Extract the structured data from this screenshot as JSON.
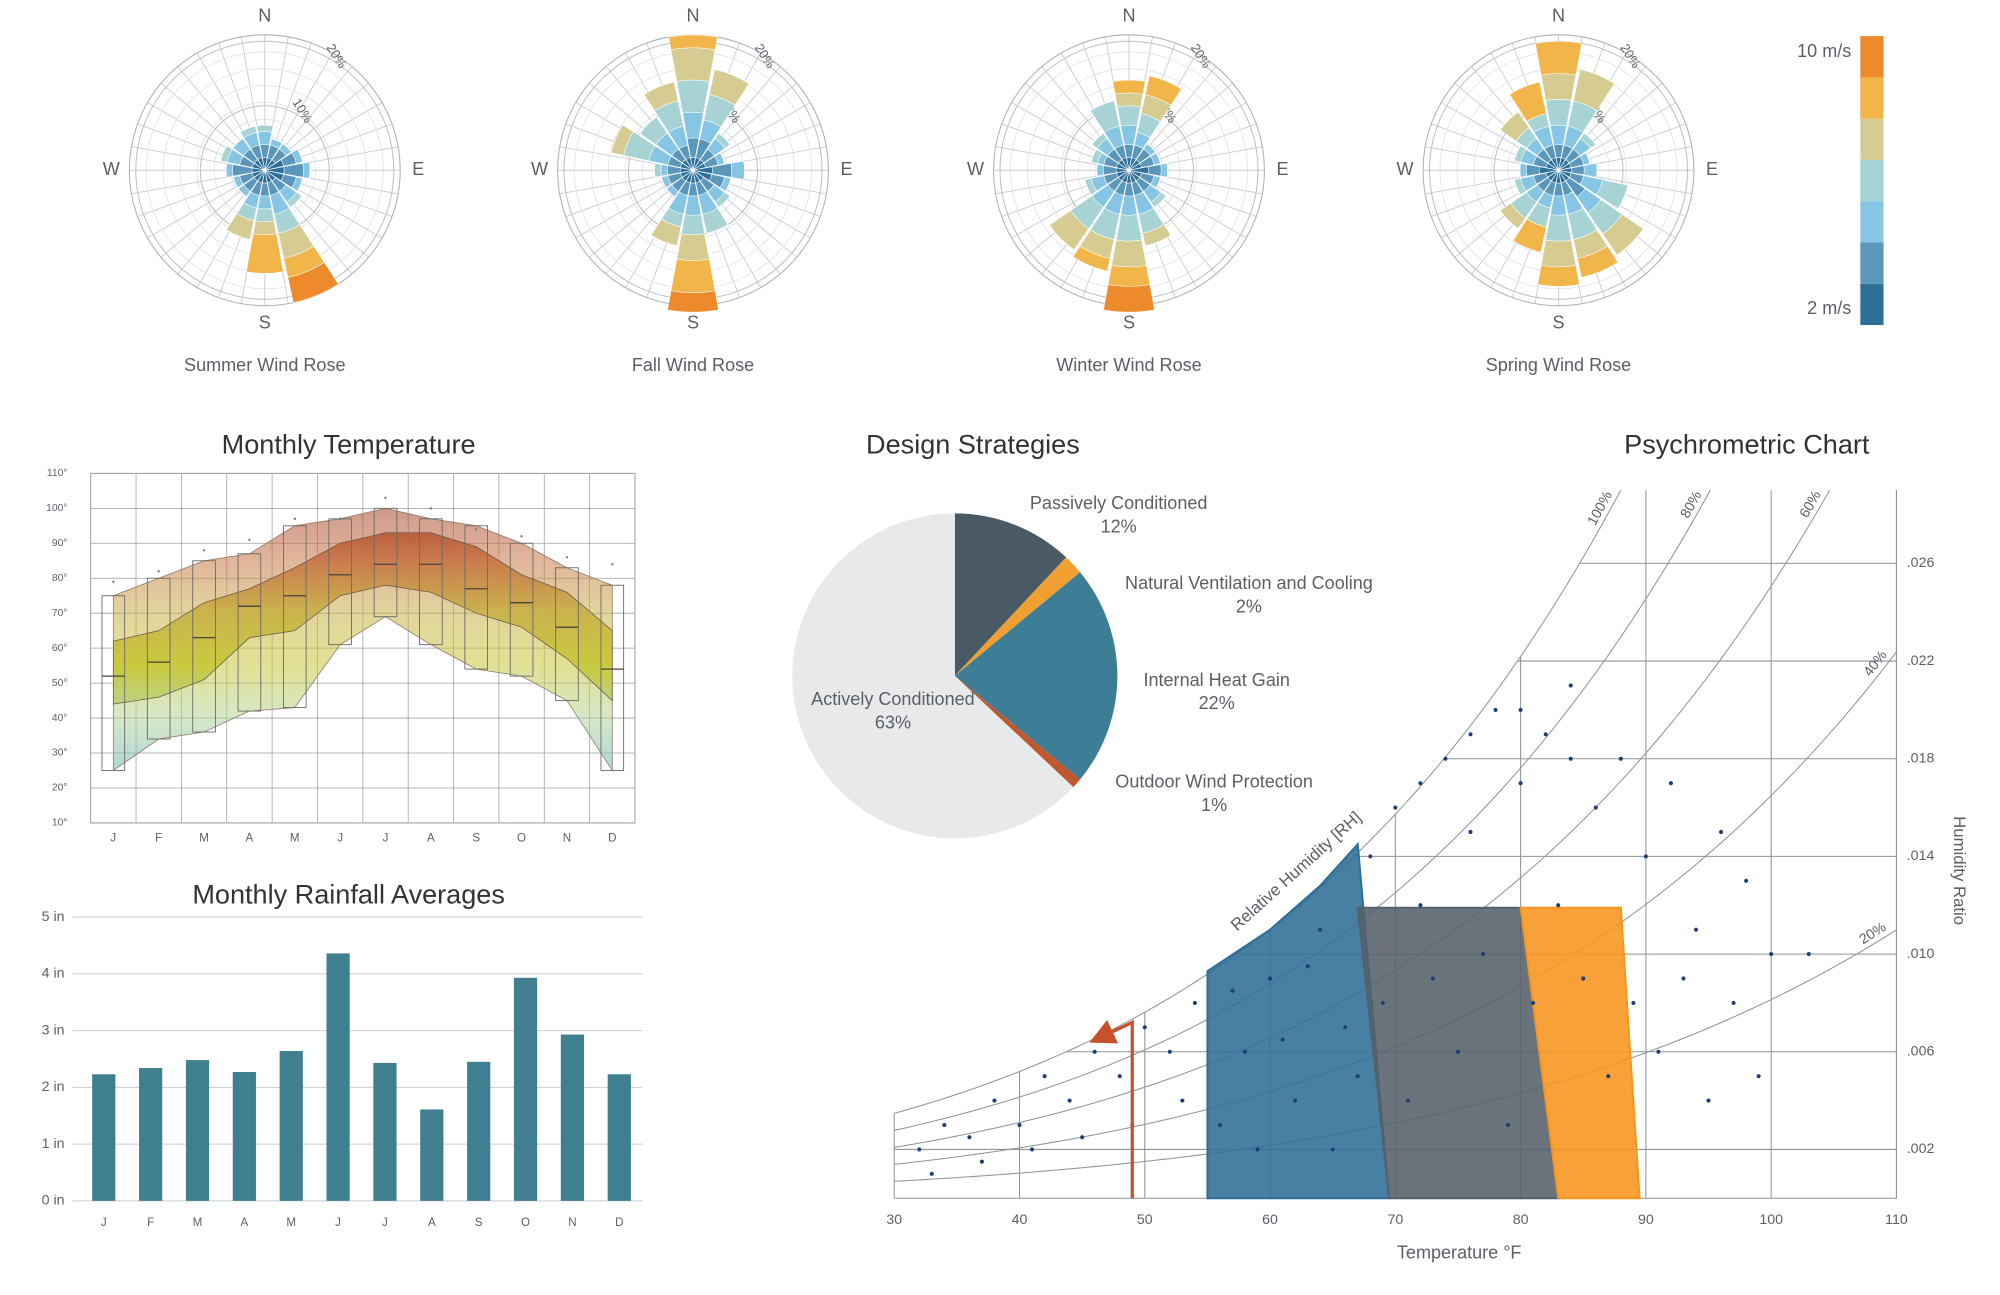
{
  "chart_data": [
    {
      "type": "wind-rose",
      "roses": [
        {
          "title": "Summer Wind Rose",
          "values": [
            [
              2,
              2,
              2,
              1,
              0,
              0,
              0
            ],
            [
              2,
              2,
              1,
              0,
              0,
              0,
              0
            ],
            [
              2,
              2,
              1,
              0,
              0,
              0,
              0
            ],
            [
              3,
              2,
              1,
              0,
              0,
              0,
              0
            ],
            [
              3,
              3,
              1,
              0,
              0,
              0,
              0
            ],
            [
              3,
              2,
              1,
              0,
              0,
              0,
              0
            ],
            [
              2,
              2,
              2,
              1,
              0,
              0,
              0
            ],
            [
              2,
              2,
              3,
              3,
              4,
              3,
              4
            ],
            [
              2,
              2,
              2,
              2,
              2,
              6,
              0
            ],
            [
              2,
              2,
              2,
              2,
              3,
              0,
              0
            ],
            [
              2,
              2,
              1,
              0,
              0,
              0,
              0
            ],
            [
              2,
              2,
              1,
              0,
              0,
              0,
              0
            ],
            [
              2,
              3,
              1,
              0,
              0,
              0,
              0
            ],
            [
              2,
              2,
              2,
              1,
              0,
              0,
              0
            ],
            [
              2,
              2,
              2,
              0,
              0,
              0,
              0
            ],
            [
              2,
              2,
              2,
              1,
              0,
              0,
              0
            ]
          ]
        },
        {
          "title": "Fall Wind Rose",
          "values": [
            [
              2,
              3,
              4,
              5,
              5,
              2,
              0
            ],
            [
              2,
              3,
              3,
              4,
              4,
              0,
              0
            ],
            [
              2,
              2,
              2,
              1,
              0,
              0,
              0
            ],
            [
              2,
              2,
              1,
              0,
              0,
              0,
              0
            ],
            [
              3,
              3,
              2,
              0,
              0,
              0,
              0
            ],
            [
              3,
              2,
              1,
              0,
              0,
              0,
              0
            ],
            [
              2,
              2,
              2,
              1,
              0,
              0,
              0
            ],
            [
              2,
              2,
              3,
              3,
              0,
              0,
              0
            ],
            [
              2,
              2,
              3,
              3,
              4,
              5,
              3
            ],
            [
              2,
              2,
              3,
              2,
              3,
              0,
              0
            ],
            [
              2,
              2,
              1,
              0,
              0,
              0,
              0
            ],
            [
              2,
              2,
              1,
              0,
              0,
              0,
              0
            ],
            [
              2,
              2,
              1,
              1,
              0,
              0,
              0
            ],
            [
              2,
              2,
              3,
              4,
              2,
              0,
              0
            ],
            [
              2,
              2,
              3,
              3,
              0,
              0,
              0
            ],
            [
              2,
              2,
              3,
              4,
              3,
              0,
              0
            ]
          ]
        },
        {
          "title": "Winter Wind Rose",
          "values": [
            [
              2,
              2,
              3,
              3,
              2,
              2,
              0
            ],
            [
              2,
              2,
              2,
              3,
              3,
              3,
              0
            ],
            [
              2,
              2,
              1,
              0,
              0,
              0,
              0
            ],
            [
              2,
              2,
              1,
              0,
              0,
              0,
              0
            ],
            [
              3,
              2,
              1,
              0,
              0,
              0,
              0
            ],
            [
              2,
              2,
              1,
              0,
              0,
              0,
              0
            ],
            [
              2,
              2,
              2,
              1,
              0,
              0,
              0
            ],
            [
              2,
              2,
              3,
              3,
              2,
              0,
              0
            ],
            [
              2,
              2,
              3,
              4,
              4,
              3,
              4
            ],
            [
              2,
              2,
              3,
              4,
              3,
              2,
              0
            ],
            [
              2,
              2,
              3,
              4,
              4,
              0,
              0
            ],
            [
              2,
              2,
              2,
              1,
              0,
              0,
              0
            ],
            [
              2,
              2,
              1,
              0,
              0,
              0,
              0
            ],
            [
              2,
              2,
              1,
              1,
              0,
              0,
              0
            ],
            [
              2,
              2,
              2,
              1,
              0,
              0,
              0
            ],
            [
              2,
              2,
              3,
              4,
              0,
              0,
              0
            ]
          ]
        },
        {
          "title": "Spring Wind Rose",
          "values": [
            [
              2,
              2,
              3,
              4,
              4,
              5,
              0
            ],
            [
              2,
              2,
              3,
              4,
              5,
              0,
              0
            ],
            [
              2,
              2,
              2,
              1,
              0,
              0,
              0
            ],
            [
              2,
              2,
              1,
              0,
              0,
              0,
              0
            ],
            [
              2,
              2,
              2,
              0,
              0,
              0,
              0
            ],
            [
              2,
              2,
              3,
              4,
              0,
              0,
              0
            ],
            [
              2,
              3,
              3,
              4,
              4,
              0,
              0
            ],
            [
              2,
              2,
              3,
              4,
              3,
              3,
              0
            ],
            [
              2,
              2,
              3,
              4,
              4,
              3,
              0
            ],
            [
              2,
              2,
              2,
              3,
              0,
              4,
              0
            ],
            [
              2,
              2,
              2,
              3,
              2,
              0,
              0
            ],
            [
              2,
              2,
              2,
              1,
              0,
              0,
              0
            ],
            [
              3,
              2,
              1,
              0,
              0,
              0,
              0
            ],
            [
              2,
              2,
              2,
              1,
              0,
              0,
              0
            ],
            [
              2,
              2,
              2,
              2,
              3,
              0,
              0
            ],
            [
              2,
              2,
              3,
              2,
              0,
              5,
              0
            ]
          ]
        }
      ],
      "direction_labels": [
        "N",
        "E",
        "S",
        "W"
      ],
      "rlim": [
        0,
        21
      ],
      "rticks": [
        {
          "value": 10,
          "label": "10%"
        },
        {
          "value": 20,
          "label": "20%"
        }
      ],
      "colors": [
        "#2e6f99",
        "#5b96bb",
        "#86c6e4",
        "#a8d3d4",
        "#d6cc92",
        "#f2b54a",
        "#ec8a2c"
      ],
      "colorbar": {
        "lim": [
          1.5,
          10.5
        ],
        "ticks": [
          {
            "value": 10,
            "label": "10 m/s"
          },
          {
            "value": 2,
            "label": "2 m/s"
          }
        ]
      }
    },
    {
      "type": "band",
      "title": "Monthly Temperature",
      "categories": [
        "J",
        "F",
        "M",
        "A",
        "M",
        "J",
        "J",
        "A",
        "S",
        "O",
        "N",
        "D"
      ],
      "outer_high": [
        75,
        80,
        85,
        87,
        95,
        97,
        100,
        97,
        95,
        90,
        83,
        78
      ],
      "outer_low": [
        25,
        34,
        36,
        42,
        43,
        61,
        69,
        61,
        54,
        52,
        45,
        25
      ],
      "inner_high": [
        62,
        65,
        73,
        77,
        83,
        90,
        93,
        93,
        89,
        81,
        76,
        65
      ],
      "inner_low": [
        44,
        46,
        51,
        63,
        65,
        75,
        78,
        76,
        70,
        66,
        57,
        45
      ],
      "mean": [
        52,
        56,
        63,
        72,
        75,
        81,
        84,
        84,
        77,
        73,
        66,
        54
      ],
      "record": [
        79,
        82,
        88,
        91,
        97,
        97,
        103,
        100,
        94,
        92,
        86,
        84
      ],
      "ylim": [
        10,
        110
      ],
      "yticks": [
        {
          "value": 10,
          "label": "10°"
        },
        {
          "value": 20,
          "label": "20°"
        },
        {
          "value": 30,
          "label": "30°"
        },
        {
          "value": 40,
          "label": "40°"
        },
        {
          "value": 50,
          "label": "50°"
        },
        {
          "value": 60,
          "label": "60°"
        },
        {
          "value": 70,
          "label": "70°"
        },
        {
          "value": 80,
          "label": "80°"
        },
        {
          "value": 90,
          "label": "90°"
        },
        {
          "value": 100,
          "label": "100°"
        },
        {
          "value": 110,
          "label": "110°"
        }
      ],
      "color_stops": [
        {
          "value": 25,
          "color": "#6fb3b8"
        },
        {
          "value": 40,
          "color": "#b5d59a"
        },
        {
          "value": 55,
          "color": "#c8c83a"
        },
        {
          "value": 70,
          "color": "#c9b24a"
        },
        {
          "value": 85,
          "color": "#c9784a"
        },
        {
          "value": 100,
          "color": "#a8452c"
        }
      ],
      "grid": true
    },
    {
      "type": "bar",
      "title": "Monthly Rainfall Averages",
      "categories": [
        "J",
        "F",
        "M",
        "A",
        "M",
        "J",
        "J",
        "A",
        "S",
        "O",
        "N",
        "D"
      ],
      "values": [
        2.23,
        2.34,
        2.48,
        2.27,
        2.64,
        4.36,
        2.43,
        1.61,
        2.45,
        3.93,
        2.93,
        2.23
      ],
      "color": "#3f7f8f",
      "ylim": [
        0,
        5
      ],
      "yticks": [
        {
          "value": 0,
          "label": "0 in"
        },
        {
          "value": 1,
          "label": "1 in"
        },
        {
          "value": 2,
          "label": "2 in"
        },
        {
          "value": 3,
          "label": "3 in"
        },
        {
          "value": 4,
          "label": "4 in"
        },
        {
          "value": 5,
          "label": "5 in"
        }
      ],
      "grid": true
    },
    {
      "type": "pie",
      "title": "Design Strategies",
      "categories": [
        "Passively Conditioned",
        "Natural Ventilation and Cooling",
        "Internal Heat Gain",
        "Outdoor Wind Protection",
        "Actively Conditioned"
      ],
      "values": [
        12,
        2,
        22,
        1,
        63
      ],
      "value_labels": [
        "12%",
        "2%",
        "22%",
        "1%",
        "63%"
      ],
      "colors": [
        "#4a5a64",
        "#f0a030",
        "#3e7d96",
        "#c0572e",
        "#e8e9eb"
      ]
    },
    {
      "type": "psychrometric",
      "title": "Psychrometric Chart",
      "x_label": "Temperature °F",
      "y_label": "Humidity Ratio",
      "curve_label": "Relative Humidity [RH]",
      "xlim": [
        30,
        110
      ],
      "ylim": [
        0,
        0.029
      ],
      "xticks": [
        30,
        40,
        50,
        60,
        70,
        80,
        90,
        100,
        110
      ],
      "yticks": [
        {
          "value": 0.002,
          "label": ".002"
        },
        {
          "value": 0.006,
          "label": ".006"
        },
        {
          "value": 0.01,
          "label": ".010"
        },
        {
          "value": 0.014,
          "label": ".014"
        },
        {
          "value": 0.018,
          "label": ".018"
        },
        {
          "value": 0.022,
          "label": ".022"
        },
        {
          "value": 0.026,
          "label": ".026"
        }
      ],
      "rh_lines": [
        {
          "value": 100,
          "label": "100%"
        },
        {
          "value": 80,
          "label": "80%"
        },
        {
          "value": 60,
          "label": "60%"
        },
        {
          "value": 40,
          "label": "40%"
        },
        {
          "value": 20,
          "label": "20%"
        }
      ],
      "zones": [
        {
          "color": "#2e6e96",
          "points": [
            [
              55,
              0
            ],
            [
              55,
              0.0093
            ],
            [
              60,
              0.011
            ],
            [
              64,
              0.0128
            ],
            [
              67,
              0.0145
            ],
            [
              69.5,
              0
            ]
          ]
        },
        {
          "color": "#55606a",
          "points": [
            [
              67,
              0.0119
            ],
            [
              80,
              0.0119
            ],
            [
              83,
              0
            ],
            [
              69.5,
              0
            ]
          ]
        },
        {
          "color": "#f7941d",
          "points": [
            [
              80,
              0.0119
            ],
            [
              88,
              0.0119
            ],
            [
              89.5,
              0
            ],
            [
              83,
              0
            ]
          ]
        }
      ],
      "arrow": {
        "color": "#c8502a",
        "points": [
          [
            49,
            0
          ],
          [
            49,
            0.0072
          ],
          [
            46.5,
            0.0066
          ]
        ]
      },
      "point_color": "#1f3f73",
      "points": {
        "x": [
          32,
          34,
          36,
          38,
          40,
          42,
          44,
          46,
          48,
          50,
          52,
          54,
          33,
          37,
          41,
          45,
          49,
          53,
          56,
          58,
          60,
          62,
          64,
          66,
          57,
          59,
          61,
          63,
          65,
          67,
          68,
          70,
          72,
          74,
          76,
          78,
          80,
          82,
          84,
          86,
          69,
          71,
          73,
          75,
          77,
          79,
          81,
          83,
          85,
          87,
          88,
          90,
          92,
          94,
          96,
          98,
          100,
          103,
          89,
          91,
          93,
          95,
          97,
          99,
          72,
          76,
          80,
          84
        ],
        "y": [
          0.002,
          0.003,
          0.0025,
          0.004,
          0.003,
          0.005,
          0.004,
          0.006,
          0.005,
          0.007,
          0.006,
          0.008,
          0.001,
          0.0015,
          0.002,
          0.0025,
          0.003,
          0.004,
          0.003,
          0.006,
          0.009,
          0.004,
          0.011,
          0.007,
          0.0085,
          0.002,
          0.0065,
          0.0095,
          0.002,
          0.005,
          0.014,
          0.016,
          0.012,
          0.018,
          0.015,
          0.02,
          0.017,
          0.019,
          0.021,
          0.016,
          0.008,
          0.004,
          0.009,
          0.006,
          0.01,
          0.003,
          0.008,
          0.012,
          0.009,
          0.005,
          0.018,
          0.014,
          0.017,
          0.011,
          0.015,
          0.013,
          0.01,
          0.01,
          0.008,
          0.006,
          0.009,
          0.004,
          0.008,
          0.005,
          0.017,
          0.019,
          0.02,
          0.018
        ]
      }
    }
  ]
}
